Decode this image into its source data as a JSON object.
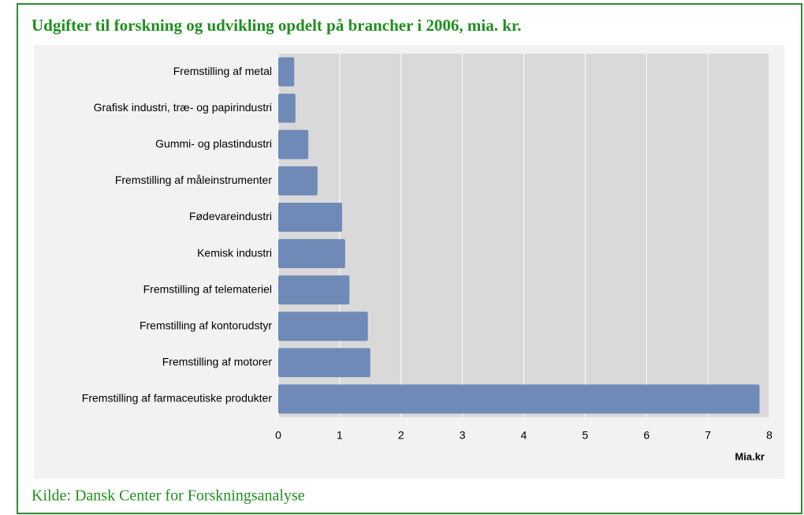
{
  "chart_data": {
    "type": "barh",
    "title": "Udgifter til forskning og udvikling opdelt på brancher i 2006, mia. kr.",
    "categories": [
      "Fremstilling af metal",
      "Grafisk industri, træ- og papirindustri",
      "Gummi- og plastindustri",
      "Fremstilling af måleinstrumenter",
      "Fødevareindustri",
      "Kemisk industri",
      "Fremstilling af telemateriel",
      "Fremstilling af kontorudstyr",
      "Fremstilling af motorer",
      "Fremstilling af farmaceutiske produkter"
    ],
    "values": [
      0.26,
      0.28,
      0.49,
      0.64,
      1.04,
      1.09,
      1.16,
      1.46,
      1.5,
      7.84
    ],
    "color": "#6f8ab7",
    "xlim": [
      0,
      8
    ],
    "xticks": [
      0,
      1,
      2,
      3,
      4,
      5,
      6,
      7,
      8
    ],
    "xlabel": "Mia.kr",
    "grid": true,
    "source": "Kilde: Dansk Center for Forskningsanalyse"
  }
}
